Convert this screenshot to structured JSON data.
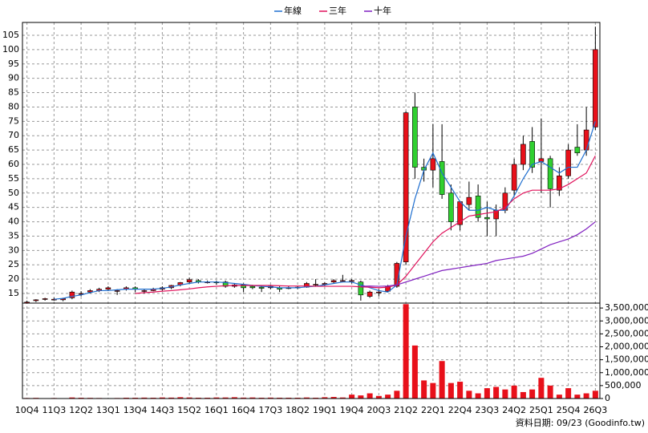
{
  "chart_data": [
    {
      "type": "candlestick",
      "series": [
        {
          "name": "年線",
          "color": "#1f6fd0",
          "values": [
            null,
            null,
            null,
            13,
            13.3,
            14,
            14.5,
            15.3,
            16,
            16,
            16.3,
            16.5,
            16.5,
            16.5,
            16.5,
            16.8,
            17.3,
            18,
            18.5,
            19,
            19,
            19,
            18.8,
            18.5,
            18.2,
            17.8,
            17.5,
            17.3,
            17,
            17,
            17,
            17.3,
            17.5,
            18,
            18.5,
            19,
            19,
            18,
            17,
            16,
            15.5,
            18,
            35,
            48,
            58,
            64,
            57,
            52,
            47,
            44,
            44,
            45,
            44,
            44,
            49,
            55,
            60,
            61,
            59,
            57,
            59,
            59,
            65,
            75
          ]
        },
        {
          "name": "三年",
          "color": "#e0105a",
          "values": [
            null,
            null,
            null,
            null,
            null,
            null,
            null,
            null,
            null,
            null,
            null,
            null,
            15,
            15.3,
            15.5,
            15.8,
            16,
            16.3,
            16.6,
            17,
            17.3,
            17.5,
            17.7,
            17.8,
            17.8,
            17.8,
            17.8,
            17.8,
            17.7,
            17.6,
            17.6,
            17.6,
            17.5,
            17.5,
            17.5,
            17.5,
            17.5,
            17.3,
            17.2,
            17,
            17.2,
            18,
            21,
            25,
            29,
            33,
            36,
            38,
            40,
            42,
            42.5,
            43,
            43.5,
            45,
            48,
            50,
            51,
            51,
            51,
            51.5,
            53,
            55,
            57,
            63
          ]
        },
        {
          "name": "十年",
          "color": "#8020c0",
          "values": [
            null,
            null,
            null,
            null,
            null,
            null,
            null,
            null,
            null,
            null,
            null,
            null,
            null,
            null,
            null,
            null,
            null,
            null,
            null,
            null,
            null,
            null,
            null,
            null,
            null,
            null,
            null,
            null,
            null,
            null,
            null,
            null,
            null,
            null,
            null,
            null,
            null,
            17.5,
            17.6,
            17.5,
            17.6,
            18,
            19,
            20,
            21,
            22,
            23,
            23.5,
            24,
            24.5,
            25,
            25.5,
            26.5,
            27,
            27.5,
            28,
            29,
            30.5,
            32,
            33,
            34,
            35.5,
            37.5,
            40
          ]
        }
      ],
      "open": [
        12,
        12.5,
        13,
        13,
        12.8,
        13.5,
        15,
        15.5,
        16,
        16.5,
        16,
        16.5,
        17,
        16,
        16,
        16.5,
        17,
        18,
        19,
        19.5,
        19,
        19,
        19,
        17.5,
        18,
        17.5,
        17.2,
        17,
        17,
        16.8,
        17,
        17.2,
        18,
        18.2,
        19,
        19.5,
        19.5,
        19,
        14,
        15.5,
        15.8,
        17.5,
        26,
        80,
        59,
        58,
        61,
        50,
        39,
        46,
        49,
        41.5,
        41,
        44,
        51,
        60,
        68,
        61,
        62,
        51,
        56,
        66,
        65,
        73
      ],
      "high": [
        12.5,
        13,
        13.5,
        13.5,
        13.5,
        16,
        15.8,
        16.5,
        17,
        17.5,
        16.5,
        17.5,
        17.5,
        16.5,
        17,
        17.5,
        18,
        19,
        20.5,
        20,
        19.5,
        19.5,
        19.5,
        18.5,
        18.5,
        18,
        17.8,
        18,
        17.5,
        17.5,
        17.5,
        19,
        20,
        19,
        20,
        21.5,
        20,
        19.5,
        16,
        16.5,
        18,
        26,
        78.5,
        85,
        62,
        74,
        74,
        53,
        47,
        54,
        53,
        47,
        46,
        52,
        62,
        70,
        73,
        76,
        63,
        59,
        67,
        74,
        80,
        108
      ],
      "low": [
        11.5,
        12,
        12.5,
        12.5,
        12.3,
        13,
        14,
        15,
        15.5,
        16,
        14.5,
        16,
        15.5,
        15,
        15.8,
        16,
        16.5,
        17.5,
        18.5,
        18.5,
        18.5,
        18,
        17,
        17,
        15.5,
        16.5,
        15.5,
        16.5,
        15.5,
        16.5,
        16.5,
        17,
        17.5,
        17.5,
        18.5,
        19,
        18.5,
        12.5,
        13.5,
        14,
        15.5,
        17,
        25,
        55,
        54,
        52,
        48,
        37,
        37,
        44,
        40,
        35,
        35,
        43,
        49,
        58,
        57,
        50,
        45,
        49,
        55,
        63,
        63,
        72
      ],
      "close": [
        12,
        12.8,
        13.2,
        13,
        13.2,
        15.5,
        15,
        16,
        16.5,
        17,
        16,
        17,
        16.5,
        16,
        16.5,
        17,
        17.8,
        18.8,
        19.8,
        19,
        19,
        18.8,
        17.5,
        18,
        17,
        17,
        16.8,
        17.5,
        16.5,
        17,
        17.2,
        18.5,
        18.2,
        18.5,
        19.5,
        19.5,
        19.5,
        14.5,
        15.5,
        15.5,
        17.5,
        25.5,
        78,
        59,
        58,
        62,
        49.5,
        40,
        47,
        48.5,
        41.5,
        41,
        44,
        50,
        60,
        67,
        59,
        62,
        51.5,
        56,
        65,
        64,
        72,
        100
      ],
      "up_color": "#e8101a",
      "down_color": "#30d030",
      "ylim": [
        11.65,
        109.47
      ],
      "yticks": [
        15,
        20,
        25,
        30,
        35,
        40,
        45,
        50,
        55,
        60,
        65,
        70,
        75,
        80,
        85,
        90,
        95,
        100,
        105
      ],
      "grid": true,
      "legend": "top"
    },
    {
      "type": "bar",
      "categories": [
        "10Q4",
        null,
        null,
        "11Q3",
        null,
        null,
        "12Q2",
        null,
        null,
        "13Q1",
        null,
        null,
        "13Q4",
        null,
        null,
        "14Q3",
        null,
        null,
        "15Q2",
        null,
        null,
        "16Q1",
        null,
        null,
        "16Q4",
        null,
        null,
        "17Q3",
        null,
        null,
        "18Q2",
        null,
        null,
        "19Q1",
        null,
        null,
        "19Q4",
        null,
        null,
        "20Q3",
        null,
        null,
        "21Q2",
        null,
        null,
        "22Q1",
        null,
        null,
        "22Q4",
        null,
        null,
        "23Q3",
        null,
        null,
        "24Q2",
        null,
        null,
        "25Q1",
        null,
        null,
        "25Q4",
        null,
        null,
        "26Q3"
      ],
      "values": [
        20000,
        25000,
        15000,
        20000,
        15000,
        40000,
        30000,
        25000,
        20000,
        15000,
        20000,
        30000,
        30000,
        35000,
        30000,
        40000,
        35000,
        50000,
        40000,
        30000,
        30000,
        40000,
        40000,
        50000,
        35000,
        40000,
        30000,
        35000,
        30000,
        30000,
        30000,
        40000,
        30000,
        50000,
        60000,
        40000,
        150000,
        120000,
        200000,
        100000,
        150000,
        300000,
        3650000,
        2050000,
        700000,
        600000,
        1450000,
        600000,
        650000,
        300000,
        200000,
        400000,
        450000,
        350000,
        500000,
        250000,
        350000,
        800000,
        500000,
        150000,
        400000,
        150000,
        200000,
        300000
      ],
      "color": "#e8101a",
      "ylim": [
        0,
        3690000
      ],
      "yticks": [
        0,
        {
          "value": 500000,
          "label": "500,000"
        },
        {
          "value": 1000000,
          "label": "1,000,000"
        },
        {
          "value": 1500000,
          "label": "1,500,000"
        },
        {
          "value": 2000000,
          "label": "2,000,000"
        },
        {
          "value": 2500000,
          "label": "2,500,000"
        },
        {
          "value": 3000000,
          "label": "3,000,000"
        },
        {
          "value": 3500000,
          "label": "3,500,000"
        }
      ],
      "grid": true,
      "note": "資料日期: 09/23 (Goodinfo.tw)"
    }
  ]
}
